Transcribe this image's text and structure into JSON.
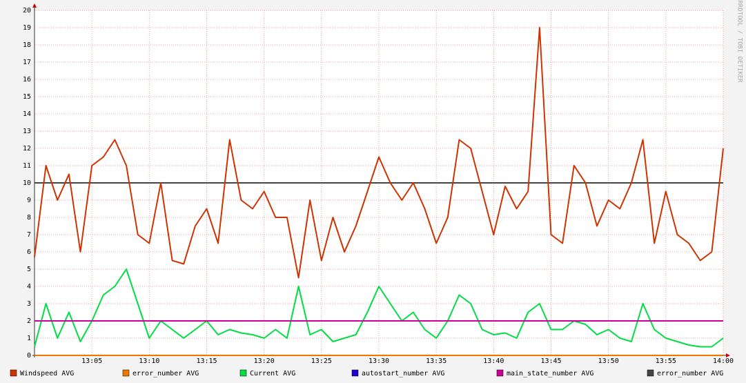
{
  "chart_data": {
    "type": "line",
    "watermark": "RRDTOOL / TOBI OETIKER",
    "x": [
      0,
      1,
      2,
      3,
      4,
      5,
      6,
      7,
      8,
      9,
      10,
      11,
      12,
      13,
      14,
      15,
      16,
      17,
      18,
      19,
      20,
      21,
      22,
      23,
      24,
      25,
      26,
      27,
      28,
      29,
      30,
      31,
      32,
      33,
      34,
      35,
      36,
      37,
      38,
      39,
      40,
      41,
      42,
      43,
      44,
      45,
      46,
      47,
      48,
      49,
      50,
      51,
      52,
      53,
      54,
      55,
      56,
      57,
      58,
      59,
      60
    ],
    "xlim": [
      0,
      60
    ],
    "xticks": [
      {
        "value": 5,
        "label": "13:05"
      },
      {
        "value": 10,
        "label": "13:10"
      },
      {
        "value": 15,
        "label": "13:15"
      },
      {
        "value": 20,
        "label": "13:20"
      },
      {
        "value": 25,
        "label": "13:25"
      },
      {
        "value": 30,
        "label": "13:30"
      },
      {
        "value": 35,
        "label": "13:35"
      },
      {
        "value": 40,
        "label": "13:40"
      },
      {
        "value": 45,
        "label": "13:45"
      },
      {
        "value": 50,
        "label": "13:50"
      },
      {
        "value": 55,
        "label": "13:55"
      },
      {
        "value": 60,
        "label": "14:00"
      }
    ],
    "ylim": [
      0,
      20
    ],
    "yticks": [
      0,
      1,
      2,
      3,
      4,
      5,
      6,
      7,
      8,
      9,
      10,
      11,
      12,
      13,
      14,
      15,
      16,
      17,
      18,
      19,
      20
    ],
    "grid": true,
    "series": [
      {
        "name": "Windspeed AVG",
        "color": "#cc3300",
        "values": [
          5.7,
          11,
          9,
          10.5,
          6,
          11,
          11.5,
          12.5,
          11,
          7,
          6.5,
          10,
          5.5,
          5.3,
          7.5,
          8.5,
          6.5,
          12.5,
          9,
          8.5,
          9.5,
          8,
          8,
          4.5,
          9,
          5.5,
          8,
          6,
          7.5,
          9.5,
          11.5,
          10,
          9,
          10,
          8.5,
          6.5,
          8,
          12.5,
          12,
          9.5,
          7,
          9.8,
          8.5,
          9.5,
          19,
          7,
          6.5,
          11,
          10,
          7.5,
          9,
          8.5,
          10,
          12.5,
          6.5,
          9.5,
          7,
          6.5,
          5.5,
          6,
          12
        ]
      },
      {
        "name": "error_number AVG",
        "color": "#ee7700",
        "values": [
          0,
          0,
          0,
          0,
          0,
          0,
          0,
          0,
          0,
          0,
          0,
          0,
          0,
          0,
          0,
          0,
          0,
          0,
          0,
          0,
          0,
          0,
          0,
          0,
          0,
          0,
          0,
          0,
          0,
          0,
          0,
          0,
          0,
          0,
          0,
          0,
          0,
          0,
          0,
          0,
          0,
          0,
          0,
          0,
          0,
          0,
          0,
          0,
          0,
          0,
          0,
          0,
          0,
          0,
          0,
          0,
          0,
          0,
          0,
          0,
          0
        ]
      },
      {
        "name": "Current AVG",
        "color": "#00dd44",
        "values": [
          0.5,
          3,
          1,
          2.5,
          0.8,
          2,
          3.5,
          4,
          5,
          3,
          1,
          2,
          1.5,
          1,
          1.5,
          2,
          1.2,
          1.5,
          1.3,
          1.2,
          1,
          1.5,
          1,
          4,
          1.2,
          1.5,
          0.8,
          1,
          1.2,
          2.5,
          4,
          3,
          2,
          2.5,
          1.5,
          1,
          2,
          3.5,
          3,
          1.5,
          1.2,
          1.3,
          1,
          2.5,
          3,
          1.5,
          1.5,
          2,
          1.8,
          1.2,
          1.5,
          1,
          0.8,
          3,
          1.5,
          1,
          0.8,
          0.6,
          0.5,
          0.5,
          1
        ]
      },
      {
        "name": "autostart_number AVG",
        "color": "#2200cc",
        "values": [
          0,
          0,
          0,
          0,
          0,
          0,
          0,
          0,
          0,
          0,
          0,
          0,
          0,
          0,
          0,
          0,
          0,
          0,
          0,
          0,
          0,
          0,
          0,
          0,
          0,
          0,
          0,
          0,
          0,
          0,
          0,
          0,
          0,
          0,
          0,
          0,
          0,
          0,
          0,
          0,
          0,
          0,
          0,
          0,
          0,
          0,
          0,
          0,
          0,
          0,
          0,
          0,
          0,
          0,
          0,
          0,
          0,
          0,
          0,
          0,
          0
        ]
      },
      {
        "name": "main_state_number AVG",
        "color": "#cc0099",
        "values": [
          2,
          2,
          2,
          2,
          2,
          2,
          2,
          2,
          2,
          2,
          2,
          2,
          2,
          2,
          2,
          2,
          2,
          2,
          2,
          2,
          2,
          2,
          2,
          2,
          2,
          2,
          2,
          2,
          2,
          2,
          2,
          2,
          2,
          2,
          2,
          2,
          2,
          2,
          2,
          2,
          2,
          2,
          2,
          2,
          2,
          2,
          2,
          2,
          2,
          2,
          2,
          2,
          2,
          2,
          2,
          2,
          2,
          2,
          2,
          2,
          2
        ]
      },
      {
        "name": "error_number AVG",
        "color": "#444444",
        "values": [
          10,
          10,
          10,
          10,
          10,
          10,
          10,
          10,
          10,
          10,
          10,
          10,
          10,
          10,
          10,
          10,
          10,
          10,
          10,
          10,
          10,
          10,
          10,
          10,
          10,
          10,
          10,
          10,
          10,
          10,
          10,
          10,
          10,
          10,
          10,
          10,
          10,
          10,
          10,
          10,
          10,
          10,
          10,
          10,
          10,
          10,
          10,
          10,
          10,
          10,
          10,
          10,
          10,
          10,
          10,
          10,
          10,
          10,
          10,
          10,
          10
        ]
      }
    ],
    "draw_order": [
      3,
      1,
      2,
      4,
      5,
      0
    ]
  }
}
